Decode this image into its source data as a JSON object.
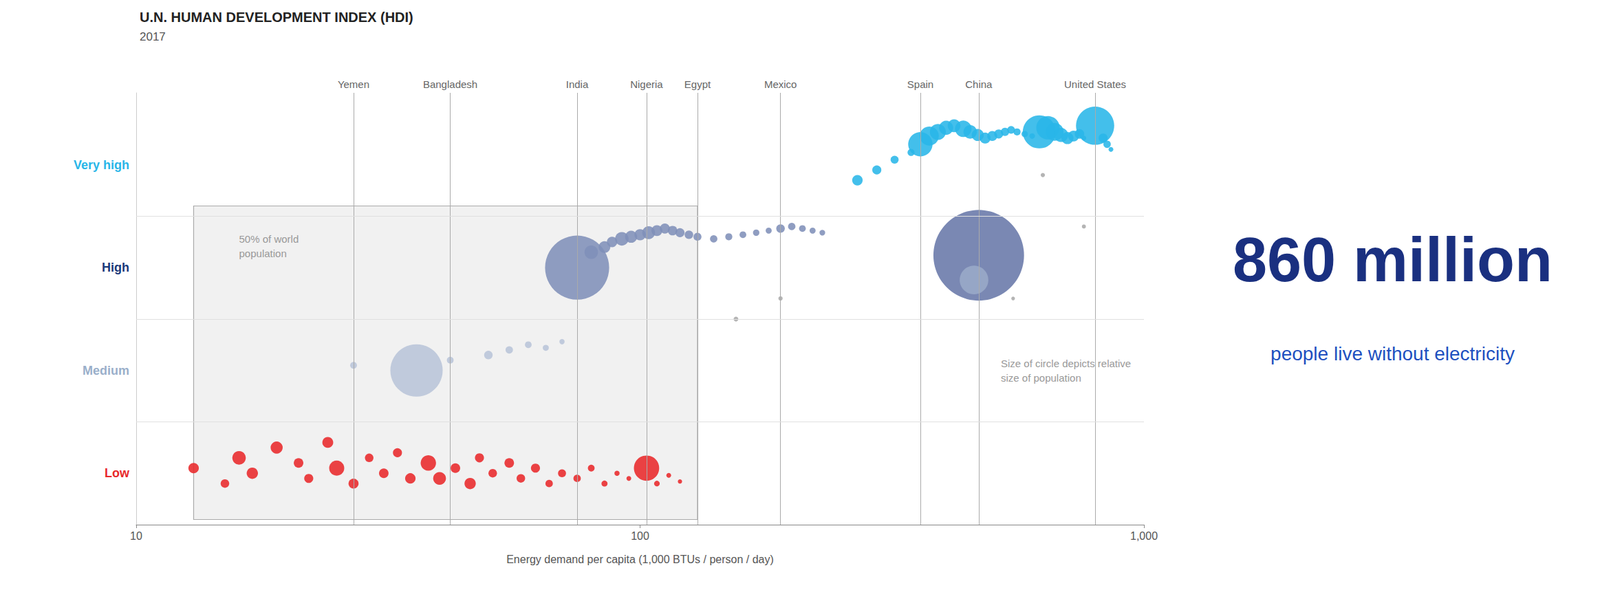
{
  "chart_data": {
    "type": "scatter",
    "title": "U.N. HUMAN DEVELOPMENT INDEX (HDI)",
    "subtitle": "2017",
    "xlabel": "Energy demand per capita (1,000 BTUs / person / day)",
    "log": "x",
    "xlim": [
      10,
      1000
    ],
    "xticks": [
      10,
      100,
      {
        "value": 1000,
        "label": "1,000"
      }
    ],
    "ylim": [
      0,
      4.2
    ],
    "yticks": [
      {
        "value": 3.5,
        "label": "Very high",
        "color": "#29b6e8"
      },
      {
        "value": 2.5,
        "label": "High",
        "color": "#1a3a7a"
      },
      {
        "value": 1.5,
        "label": "Medium",
        "color": "#9aafca"
      },
      {
        "value": 0.5,
        "label": "Low",
        "color": "#e8282a"
      }
    ],
    "hlines": [
      1.0,
      2.0,
      3.0
    ],
    "vlines": [
      {
        "x": 27,
        "label": "Yemen"
      },
      {
        "x": 42,
        "label": "Bangladesh"
      },
      {
        "x": 75,
        "label": "India"
      },
      {
        "x": 103,
        "label": "Nigeria"
      },
      {
        "x": 130,
        "label": "Egypt"
      },
      {
        "x": 190,
        "label": "Mexico"
      },
      {
        "x": 360,
        "label": "Spain"
      },
      {
        "x": 470,
        "label": "China"
      },
      {
        "x": 800,
        "label": "United States"
      }
    ],
    "shaded_region": {
      "x": [
        13,
        130
      ],
      "y": [
        0.05,
        3.1
      ]
    },
    "annotations": [
      {
        "x": 16,
        "y": 2.85,
        "text": "50% of world\npopulation"
      },
      {
        "x": 520,
        "y": 1.5,
        "text": "Size of circle depicts relative\nsize of population"
      }
    ],
    "big_text": "860 million",
    "big_subtext": "people live without electricity",
    "x": [
      13,
      15,
      16,
      17,
      19,
      21,
      22,
      24,
      25,
      27,
      29,
      31,
      33,
      35,
      38,
      40,
      43,
      46,
      48,
      51,
      55,
      58,
      62,
      66,
      70,
      75,
      80,
      85,
      90,
      95,
      103,
      108,
      114,
      120,
      27,
      36,
      42,
      50,
      55,
      60,
      65,
      70,
      75,
      80,
      85,
      88,
      92,
      96,
      100,
      104,
      108,
      112,
      116,
      120,
      125,
      130,
      140,
      150,
      160,
      170,
      180,
      190,
      200,
      210,
      220,
      230,
      155,
      190,
      470,
      460,
      270,
      295,
      320,
      345,
      360,
      375,
      390,
      405,
      420,
      438,
      452,
      468,
      484,
      500,
      515,
      530,
      545,
      560,
      580,
      600,
      620,
      645,
      665,
      685,
      705,
      725,
      745,
      760,
      800,
      830,
      845,
      860,
      630,
      760,
      550
    ],
    "values": [
      0.55,
      0.4,
      0.65,
      0.5,
      0.75,
      0.6,
      0.45,
      0.8,
      0.55,
      0.4,
      0.65,
      0.5,
      0.7,
      0.45,
      0.6,
      0.45,
      0.55,
      0.4,
      0.65,
      0.5,
      0.6,
      0.45,
      0.55,
      0.4,
      0.5,
      0.45,
      0.55,
      0.4,
      0.5,
      0.45,
      0.55,
      0.4,
      0.48,
      0.42,
      1.55,
      1.5,
      1.6,
      1.65,
      1.7,
      1.75,
      1.72,
      1.78,
      2.5,
      2.65,
      2.7,
      2.75,
      2.78,
      2.8,
      2.82,
      2.84,
      2.86,
      2.88,
      2.86,
      2.84,
      2.82,
      2.8,
      2.78,
      2.8,
      2.82,
      2.84,
      2.86,
      2.88,
      2.9,
      2.88,
      2.86,
      2.84,
      2.0,
      2.2,
      2.62,
      2.38,
      3.35,
      3.45,
      3.55,
      3.62,
      3.7,
      3.78,
      3.82,
      3.86,
      3.88,
      3.85,
      3.82,
      3.79,
      3.76,
      3.78,
      3.8,
      3.82,
      3.84,
      3.82,
      3.8,
      3.78,
      3.82,
      3.86,
      3.82,
      3.79,
      3.76,
      3.78,
      3.8,
      3.76,
      3.88,
      3.76,
      3.7,
      3.65,
      3.4,
      2.9,
      2.2
    ],
    "sizes": [
      120,
      80,
      200,
      140,
      160,
      100,
      90,
      130,
      250,
      110,
      80,
      100,
      90,
      120,
      260,
      180,
      100,
      140,
      90,
      80,
      100,
      80,
      90,
      60,
      70,
      60,
      50,
      40,
      30,
      25,
      700,
      35,
      25,
      20,
      50,
      3000,
      50,
      80,
      60,
      50,
      40,
      30,
      4500,
      200,
      150,
      120,
      200,
      160,
      140,
      180,
      130,
      110,
      100,
      90,
      80,
      70,
      60,
      55,
      50,
      45,
      40,
      80,
      60,
      50,
      40,
      35,
      25,
      20,
      9000,
      900,
      120,
      90,
      70,
      55,
      650,
      400,
      280,
      220,
      180,
      300,
      200,
      160,
      130,
      110,
      90,
      75,
      65,
      55,
      45,
      35,
      1200,
      600,
      350,
      220,
      160,
      130,
      100,
      25,
      1600,
      90,
      60,
      25,
      20,
      18,
      15
    ],
    "colors": [
      "#e8282a",
      "#e8282a",
      "#e8282a",
      "#e8282a",
      "#e8282a",
      "#e8282a",
      "#e8282a",
      "#e8282a",
      "#e8282a",
      "#e8282a",
      "#e8282a",
      "#e8282a",
      "#e8282a",
      "#e8282a",
      "#e8282a",
      "#e8282a",
      "#e8282a",
      "#e8282a",
      "#e8282a",
      "#e8282a",
      "#e8282a",
      "#e8282a",
      "#e8282a",
      "#e8282a",
      "#e8282a",
      "#e8282a",
      "#e8282a",
      "#e8282a",
      "#e8282a",
      "#e8282a",
      "#e8282a",
      "#e8282a",
      "#e8282a",
      "#e8282a",
      "#b8c4d8",
      "#b8c4d8",
      "#b8c4d8",
      "#b8c4d8",
      "#b8c4d8",
      "#b8c4d8",
      "#b8c4d8",
      "#b8c4d8",
      "#8090b8",
      "#8090b8",
      "#8090b8",
      "#8090b8",
      "#8090b8",
      "#8090b8",
      "#8090b8",
      "#8090b8",
      "#8090b8",
      "#8090b8",
      "#8090b8",
      "#8090b8",
      "#8090b8",
      "#8090b8",
      "#8090b8",
      "#8090b8",
      "#8090b8",
      "#8090b8",
      "#8090b8",
      "#8090b8",
      "#8090b8",
      "#8090b8",
      "#8090b8",
      "#8090b8",
      "#aaaaaa",
      "#aaaaaa",
      "#6878a8",
      "#9aaac8",
      "#29b6e8",
      "#29b6e8",
      "#29b6e8",
      "#29b6e8",
      "#29b6e8",
      "#29b6e8",
      "#29b6e8",
      "#29b6e8",
      "#29b6e8",
      "#29b6e8",
      "#29b6e8",
      "#29b6e8",
      "#29b6e8",
      "#29b6e8",
      "#29b6e8",
      "#29b6e8",
      "#29b6e8",
      "#29b6e8",
      "#29b6e8",
      "#29b6e8",
      "#29b6e8",
      "#29b6e8",
      "#29b6e8",
      "#29b6e8",
      "#29b6e8",
      "#29b6e8",
      "#29b6e8",
      "#29b6e8",
      "#29b6e8",
      "#29b6e8",
      "#29b6e8",
      "#29b6e8",
      "#aaaaaa",
      "#aaaaaa",
      "#aaaaaa"
    ]
  }
}
